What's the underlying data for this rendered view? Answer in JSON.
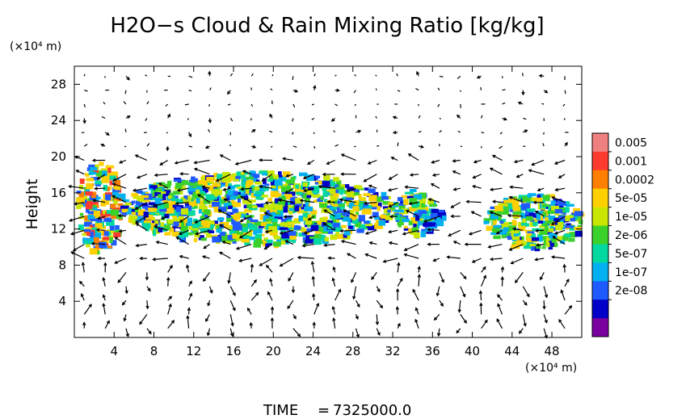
{
  "chart_data": {
    "type": "heatmap",
    "title": "H2O−s Cloud & Rain Mixing Ratio [kg/kg]",
    "ylabel": "Height",
    "y_unit": "(×10⁴ m)",
    "x_unit": "(×10⁴ m)",
    "xlim": [
      0,
      51
    ],
    "ylim": [
      0,
      30
    ],
    "x_ticks": [
      4,
      8,
      12,
      16,
      20,
      24,
      28,
      32,
      36,
      40,
      44,
      48
    ],
    "y_ticks": [
      4,
      8,
      12,
      16,
      20,
      24,
      28
    ],
    "colorbar": {
      "labels": [
        "0.005",
        "0.001",
        "0.0002",
        "5e-05",
        "1e-05",
        "2e-06",
        "5e-07",
        "1e-07",
        "2e-08"
      ],
      "colors": [
        "#f08080",
        "#ff3b2f",
        "#ff7f00",
        "#ffd000",
        "#c8e600",
        "#3ad12a",
        "#00d8a0",
        "#00b0f0",
        "#1e5aff",
        "#0000c8",
        "#7a00a0"
      ]
    },
    "cloud_regions": [
      {
        "x": [
          0,
          4.5
        ],
        "y": [
          9.5,
          19.5
        ],
        "level": "high"
      },
      {
        "x": [
          4.5,
          32
        ],
        "y": [
          10.5,
          18.5
        ],
        "level": "mid"
      },
      {
        "x": [
          32,
          36
        ],
        "y": [
          11.5,
          16.5
        ],
        "level": "mid"
      },
      {
        "x": [
          34,
          37
        ],
        "y": [
          12.5,
          14.5
        ],
        "level": "low"
      },
      {
        "x": [
          41,
          51
        ],
        "y": [
          10,
          16
        ],
        "level": "mid"
      }
    ],
    "overlay": "wind vectors",
    "time_label": "TIME",
    "time_value": "7325000.0"
  }
}
